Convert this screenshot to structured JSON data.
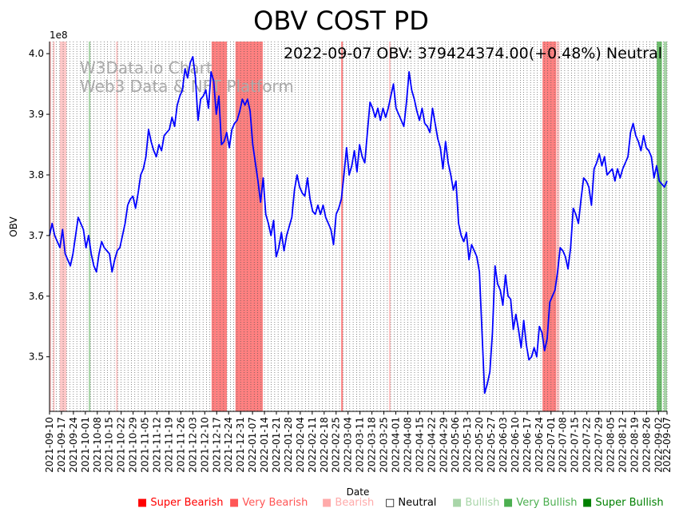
{
  "chart_data": {
    "type": "line",
    "title": "OBV COST PD",
    "annotation": "2022-09-07 OBV: 379424374.00(+0.48%) Neutral",
    "watermark": [
      "W3Data.io Chart",
      "Web3 Data & NFT Platform"
    ],
    "xlabel": "Date",
    "ylabel": "OBV",
    "y_offset_label": "1e8",
    "ylim": [
      3.41,
      4.02
    ],
    "y_ticks": [
      3.5,
      3.6,
      3.7,
      3.8,
      3.9,
      4.0
    ],
    "y_tick_labels": [
      "3.5",
      "3.6",
      "3.7",
      "3.8",
      "3.9",
      "4.0"
    ],
    "x_start": "2021-09-10",
    "x_end": "2022-09-07",
    "x_tick_labels": [
      "2021-09-10",
      "2021-09-17",
      "2021-09-24",
      "2021-10-01",
      "2021-10-08",
      "2021-10-15",
      "2021-10-22",
      "2021-10-29",
      "2021-11-05",
      "2021-11-12",
      "2021-11-19",
      "2021-11-26",
      "2021-12-03",
      "2021-12-10",
      "2021-12-17",
      "2021-12-24",
      "2021-12-31",
      "2022-01-07",
      "2022-01-14",
      "2022-01-21",
      "2022-01-28",
      "2022-02-04",
      "2022-02-11",
      "2022-02-18",
      "2022-02-25",
      "2022-03-04",
      "2022-03-11",
      "2022-03-18",
      "2022-03-25",
      "2022-04-01",
      "2022-04-08",
      "2022-04-15",
      "2022-04-22",
      "2022-04-29",
      "2022-05-06",
      "2022-05-13",
      "2022-05-20",
      "2022-05-27",
      "2022-06-03",
      "2022-06-10",
      "2022-06-17",
      "2022-06-24",
      "2022-07-01",
      "2022-07-08",
      "2022-07-15",
      "2022-07-22",
      "2022-07-29",
      "2022-08-05",
      "2022-08-12",
      "2022-08-19",
      "2022-08-26",
      "2022-09-02",
      "2022-09-07"
    ],
    "series": [
      {
        "name": "OBV",
        "color": "#0000ff",
        "values": [
          3.7,
          3.72,
          3.7,
          3.69,
          3.68,
          3.71,
          3.67,
          3.66,
          3.65,
          3.67,
          3.7,
          3.73,
          3.72,
          3.71,
          3.68,
          3.7,
          3.67,
          3.65,
          3.64,
          3.67,
          3.69,
          3.68,
          3.675,
          3.67,
          3.64,
          3.66,
          3.675,
          3.68,
          3.7,
          3.72,
          3.75,
          3.76,
          3.765,
          3.745,
          3.77,
          3.8,
          3.81,
          3.83,
          3.875,
          3.855,
          3.84,
          3.83,
          3.85,
          3.84,
          3.865,
          3.87,
          3.875,
          3.895,
          3.88,
          3.915,
          3.93,
          3.94,
          3.975,
          3.96,
          3.985,
          3.995,
          3.96,
          3.89,
          3.925,
          3.93,
          3.94,
          3.91,
          3.97,
          3.955,
          3.9,
          3.93,
          3.85,
          3.855,
          3.87,
          3.845,
          3.875,
          3.885,
          3.89,
          3.905,
          3.925,
          3.915,
          3.925,
          3.905,
          3.85,
          3.82,
          3.79,
          3.755,
          3.795,
          3.735,
          3.72,
          3.7,
          3.725,
          3.665,
          3.68,
          3.705,
          3.675,
          3.7,
          3.715,
          3.73,
          3.775,
          3.8,
          3.78,
          3.77,
          3.765,
          3.795,
          3.76,
          3.74,
          3.735,
          3.75,
          3.735,
          3.75,
          3.73,
          3.72,
          3.71,
          3.685,
          3.735,
          3.745,
          3.76,
          3.8,
          3.845,
          3.8,
          3.815,
          3.84,
          3.805,
          3.85,
          3.83,
          3.82,
          3.87,
          3.92,
          3.91,
          3.895,
          3.91,
          3.89,
          3.91,
          3.895,
          3.91,
          3.93,
          3.95,
          3.91,
          3.9,
          3.89,
          3.88,
          3.92,
          3.97,
          3.94,
          3.925,
          3.905,
          3.89,
          3.91,
          3.885,
          3.88,
          3.87,
          3.91,
          3.885,
          3.86,
          3.845,
          3.81,
          3.855,
          3.82,
          3.8,
          3.775,
          3.79,
          3.72,
          3.7,
          3.69,
          3.705,
          3.66,
          3.685,
          3.675,
          3.665,
          3.64,
          3.54,
          3.44,
          3.455,
          3.475,
          3.54,
          3.65,
          3.62,
          3.61,
          3.585,
          3.635,
          3.6,
          3.595,
          3.545,
          3.57,
          3.545,
          3.515,
          3.56,
          3.52,
          3.495,
          3.5,
          3.515,
          3.5,
          3.55,
          3.54,
          3.51,
          3.53,
          3.59,
          3.6,
          3.61,
          3.64,
          3.68,
          3.675,
          3.665,
          3.645,
          3.68,
          3.745,
          3.735,
          3.72,
          3.76,
          3.795,
          3.79,
          3.78,
          3.75,
          3.81,
          3.82,
          3.835,
          3.815,
          3.83,
          3.8,
          3.805,
          3.81,
          3.79,
          3.81,
          3.795,
          3.81,
          3.82,
          3.83,
          3.87,
          3.885,
          3.865,
          3.855,
          3.84,
          3.865,
          3.845,
          3.84,
          3.83,
          3.795,
          3.815,
          3.79,
          3.785,
          3.78,
          3.79
        ]
      }
    ],
    "bands": [
      {
        "start": "2021-09-10",
        "end": "2021-09-11",
        "class": "bearish"
      },
      {
        "start": "2021-09-12",
        "end": "2021-09-13",
        "class": "bearish"
      },
      {
        "start": "2021-09-16",
        "end": "2021-09-20",
        "class": "bearish"
      },
      {
        "start": "2021-10-03",
        "end": "2021-10-04",
        "class": "bullish"
      },
      {
        "start": "2021-10-19",
        "end": "2021-10-20",
        "class": "bearish"
      },
      {
        "start": "2021-12-14",
        "end": "2021-12-17",
        "class": "very_bearish"
      },
      {
        "start": "2021-12-17",
        "end": "2021-12-23",
        "class": "very_bearish"
      },
      {
        "start": "2021-12-28",
        "end": "2022-01-13",
        "class": "very_bearish"
      },
      {
        "start": "2022-02-28",
        "end": "2022-03-01",
        "class": "very_bearish"
      },
      {
        "start": "2022-03-28",
        "end": "2022-03-29",
        "class": "bearish"
      },
      {
        "start": "2022-06-26",
        "end": "2022-07-04",
        "class": "very_bearish"
      },
      {
        "start": "2022-07-04",
        "end": "2022-07-06",
        "class": "bearish"
      },
      {
        "start": "2022-09-01",
        "end": "2022-09-04",
        "class": "very_bullish"
      },
      {
        "start": "2022-09-05",
        "end": "2022-09-07",
        "class": "bullish"
      }
    ],
    "legend_position": "bottom",
    "legend": [
      {
        "key": "super_bearish",
        "label": "Super Bearish",
        "color": "#ff0000"
      },
      {
        "key": "very_bearish",
        "label": "Very Bearish",
        "color": "#ff5555"
      },
      {
        "key": "bearish",
        "label": "Bearish",
        "color": "#ffaaaa"
      },
      {
        "key": "neutral",
        "label": "Neutral",
        "color": "#000000"
      },
      {
        "key": "bullish",
        "label": "Bullish",
        "color": "#a8d5a8"
      },
      {
        "key": "very_bullish",
        "label": "Very Bullish",
        "color": "#4caf50"
      },
      {
        "key": "super_bullish",
        "label": "Super Bullish",
        "color": "#008000"
      }
    ],
    "band_colors": {
      "bearish": "#ffc8c8",
      "very_bearish": "#ff8080",
      "bullish": "#a8d5a8",
      "very_bullish": "#6dbf6d"
    },
    "vertical_gridlines": true
  }
}
